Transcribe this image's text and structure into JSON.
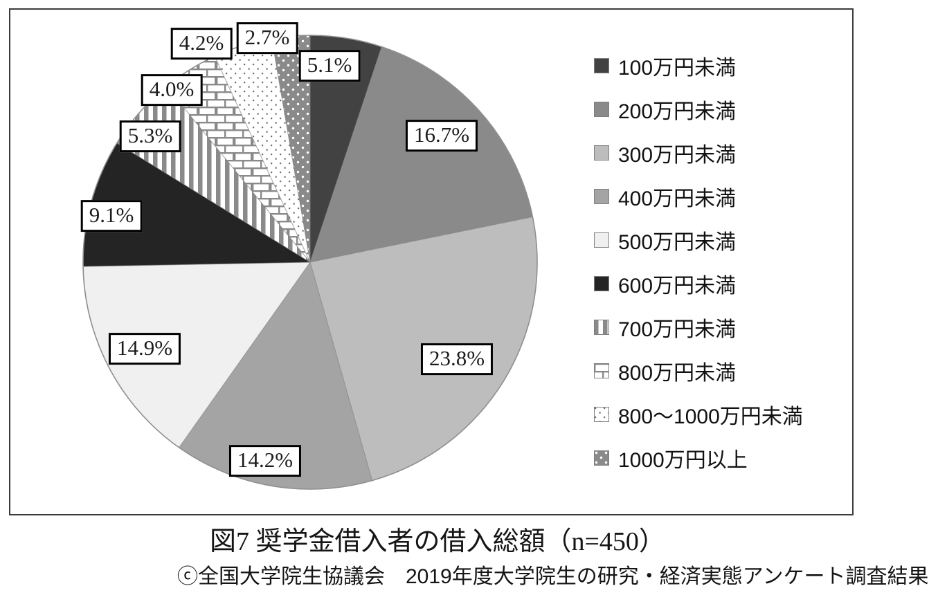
{
  "figure": {
    "caption": "図7 奨学金借入者の借入総額（n=450）",
    "source": "ⓒ全国大学院生協議会　2019年度大学院生の研究・経済実態アンケート調査結果"
  },
  "chart_data": {
    "type": "pie",
    "title": "図7 奨学金借入者の借入総額（n=450）",
    "n": 450,
    "start_angle_deg": 0,
    "direction": "clockwise",
    "legend_position": "right",
    "categories": [
      "100万円未満",
      "200万円未満",
      "300万円未満",
      "400万円未満",
      "500万円未満",
      "600万円未満",
      "700万円未満",
      "800万円未満",
      "800～1000万円未満",
      "1000万円以上"
    ],
    "values": [
      5.1,
      16.7,
      23.8,
      14.2,
      14.9,
      9.1,
      5.3,
      4.0,
      4.2,
      2.7
    ],
    "labels": [
      "5.1%",
      "16.7%",
      "23.8%",
      "14.2%",
      "14.9%",
      "9.1%",
      "5.3%",
      "4.0%",
      "4.2%",
      "2.7%"
    ],
    "slice_fills": [
      {
        "type": "solid",
        "color": "#424242"
      },
      {
        "type": "solid",
        "color": "#8a8a8a"
      },
      {
        "type": "solid",
        "color": "#bdbdbd"
      },
      {
        "type": "solid",
        "color": "#a4a4a4"
      },
      {
        "type": "solid",
        "color": "#f0f0f0"
      },
      {
        "type": "solid",
        "color": "#242424"
      },
      {
        "type": "pattern",
        "id": "vstripes",
        "fg": "#8a8a8a",
        "bg": "#ffffff"
      },
      {
        "type": "pattern",
        "id": "brick",
        "fg": "#8a8a8a",
        "bg": "#ffffff"
      },
      {
        "type": "pattern",
        "id": "dots-on-white",
        "fg": "#6e6e6e",
        "bg": "#ffffff"
      },
      {
        "type": "pattern",
        "id": "dots-on-gray",
        "fg": "#ffffff",
        "bg": "#8a8a8a"
      }
    ],
    "outline_color": "#8f8f8f"
  }
}
